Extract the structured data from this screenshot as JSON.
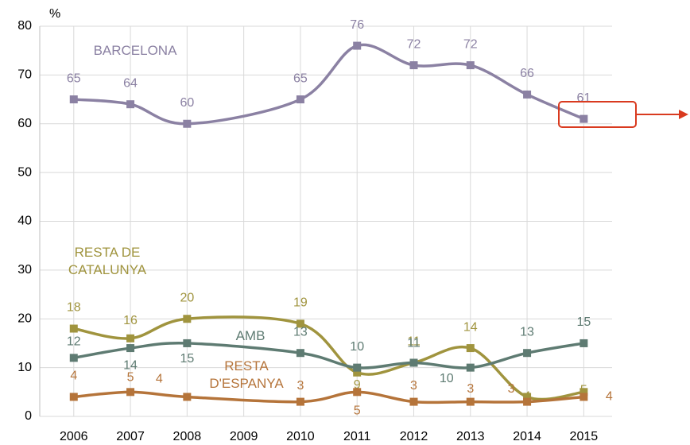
{
  "chart_data": {
    "type": "line",
    "y_label": "%",
    "x": [
      2006,
      2007,
      2008,
      2009,
      2010,
      2011,
      2012,
      2013,
      2014,
      2015
    ],
    "xlim": [
      2005.4,
      2015.5
    ],
    "xticks": [
      2006,
      2007,
      2008,
      2009,
      2010,
      2011,
      2012,
      2013,
      2014,
      2015
    ],
    "ylim": [
      0,
      80
    ],
    "yticks": [
      0,
      10,
      20,
      30,
      40,
      50,
      60,
      70,
      80
    ],
    "grid": true,
    "series": [
      {
        "name": "BARCELONA",
        "color": "#8b81a3",
        "values": [
          65,
          64,
          60,
          null,
          65,
          76,
          72,
          72,
          66,
          61
        ]
      },
      {
        "name": "RESTA DE CATALUNYA",
        "color": "#a0943e",
        "values": [
          18,
          16,
          20,
          null,
          19,
          9,
          11,
          14,
          4,
          5
        ]
      },
      {
        "name": "AMB",
        "color": "#5e7b72",
        "values": [
          12,
          14,
          15,
          null,
          13,
          10,
          11,
          10,
          13,
          15
        ]
      },
      {
        "name": "RESTA D'ESPANYA",
        "color": "#b5743a",
        "values": [
          4,
          5,
          4,
          null,
          3,
          5,
          3,
          3,
          3,
          4
        ]
      }
    ]
  }
}
